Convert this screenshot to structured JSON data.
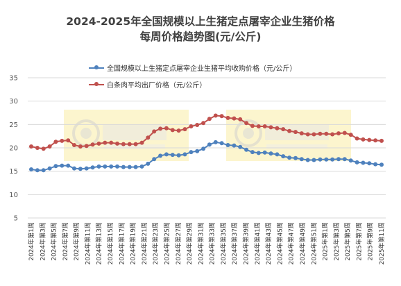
{
  "chart_data": {
    "type": "line",
    "title": "2024-2025年全国规模以上生猪定点屠宰企业生猪价格",
    "subtitle": "每周价格趋势图(元/公斤)",
    "ylim": [
      5,
      35
    ],
    "yticks": [
      5,
      10,
      15,
      20,
      25,
      30,
      35
    ],
    "grid": true,
    "legend_position": "top",
    "x_tick_labels": [
      "2024年第1周",
      "2024年第3周",
      "2024年第5周",
      "2024年第7周",
      "2024年第9周",
      "2024年第11周",
      "2024年第13周",
      "2024年第15周",
      "2024年第17周",
      "2024年第19周",
      "2024年第21周",
      "2024年第23周",
      "2024年第25周",
      "2024年第27周",
      "2024年第29周",
      "2024年第31周",
      "2024年第33周",
      "2024年第35周",
      "2024年第37周",
      "2024年第39周",
      "2024年第41周",
      "2024年第43周",
      "2024年第45周",
      "2024年第47周",
      "2024年第49周",
      "2024年第51周",
      "2025年第1周",
      "2025年第3周",
      "2025年第5周",
      "2025年第7周",
      "2025年第9周",
      "2025年第11周"
    ],
    "series": [
      {
        "name": "全国规模以上生猪定点屠宰企业生猪平均收购价格（元/公斤）",
        "color": "#4e81bd",
        "values": [
          15.4,
          15.2,
          15.2,
          15.6,
          16.1,
          16.2,
          16.2,
          15.6,
          15.5,
          15.6,
          15.8,
          16.0,
          16.0,
          16.0,
          16.0,
          15.9,
          15.9,
          15.9,
          16.0,
          16.6,
          17.6,
          18.3,
          18.6,
          18.5,
          18.4,
          18.6,
          19.1,
          19.3,
          19.8,
          20.7,
          21.2,
          21.0,
          20.6,
          20.5,
          20.2,
          19.6,
          19.1,
          18.9,
          19.0,
          18.8,
          18.6,
          18.2,
          17.9,
          17.8,
          17.6,
          17.4,
          17.4,
          17.5,
          17.5,
          17.5,
          17.6,
          17.6,
          17.3,
          16.9,
          16.8,
          16.7,
          16.5,
          16.4
        ]
      },
      {
        "name": "白条肉平均出厂价格（元/公斤）",
        "color": "#c0504d",
        "values": [
          20.3,
          20.0,
          19.8,
          20.3,
          21.3,
          21.5,
          21.6,
          20.6,
          20.3,
          20.4,
          20.7,
          20.9,
          21.1,
          21.1,
          20.9,
          20.8,
          20.8,
          20.8,
          21.1,
          22.2,
          23.5,
          24.1,
          24.2,
          23.8,
          23.7,
          24.0,
          24.6,
          24.9,
          25.3,
          26.2,
          26.9,
          26.8,
          26.4,
          26.3,
          26.1,
          25.3,
          24.7,
          24.6,
          24.6,
          24.4,
          24.2,
          24.0,
          23.6,
          23.4,
          23.1,
          22.9,
          22.9,
          23.0,
          23.0,
          22.9,
          23.1,
          23.2,
          22.8,
          22.0,
          21.8,
          21.7,
          21.6,
          21.5
        ]
      }
    ]
  }
}
